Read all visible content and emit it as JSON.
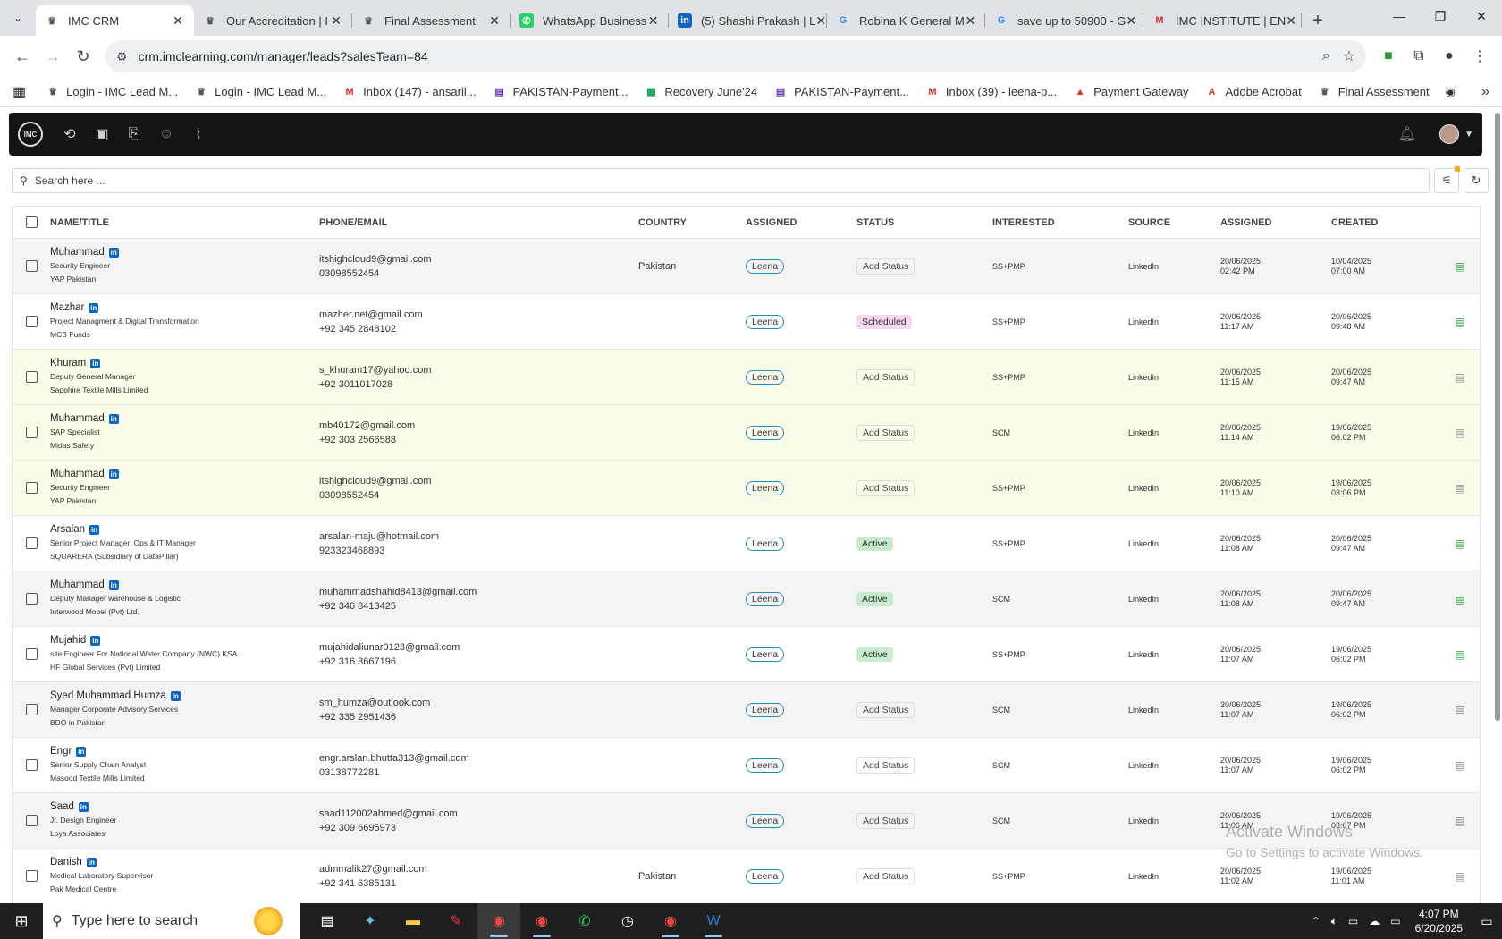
{
  "browser": {
    "tabs": [
      {
        "title": "IMC CRM",
        "icon": "imc-icon",
        "active": true
      },
      {
        "title": "Our Accreditation | I",
        "icon": "imc-icon"
      },
      {
        "title": "Final Assessment",
        "icon": "imc-icon"
      },
      {
        "title": "WhatsApp Business",
        "icon": "whatsapp-icon"
      },
      {
        "title": "(5) Shashi Prakash | L",
        "icon": "linkedin-icon"
      },
      {
        "title": "Robina K General M",
        "icon": "google-icon"
      },
      {
        "title": "save up to 50900 - G",
        "icon": "google-icon"
      },
      {
        "title": "IMC INSTITUTE | EN",
        "icon": "gmail-icon"
      }
    ],
    "url": "crm.imclearning.com/manager/leads?salesTeam=84",
    "bookmarks": [
      {
        "label": "Login - IMC Lead M...",
        "icon": "imc-icon",
        "color": "#555"
      },
      {
        "label": "Login - IMC Lead M...",
        "icon": "imc-icon",
        "color": "#555"
      },
      {
        "label": "Inbox (147) - ansaril...",
        "icon": "gmail-icon",
        "color": "#d93025"
      },
      {
        "label": "PAKISTAN-Payment...",
        "icon": "forms-icon",
        "color": "#673ab7"
      },
      {
        "label": "Recovery June'24",
        "icon": "sheets-icon",
        "color": "#0f9d58"
      },
      {
        "label": "PAKISTAN-Payment...",
        "icon": "forms-icon",
        "color": "#673ab7"
      },
      {
        "label": "Inbox (39) - leena-p...",
        "icon": "gmail-icon",
        "color": "#d93025"
      },
      {
        "label": "Payment Gateway",
        "icon": "payment-icon",
        "color": "#d93025"
      },
      {
        "label": "Adobe Acrobat",
        "icon": "acrobat-icon",
        "color": "#d93025"
      },
      {
        "label": "Final Assessment",
        "icon": "imc-icon",
        "color": "#555"
      }
    ]
  },
  "crm": {
    "logo_text": "IMC",
    "search_placeholder": "Search here ...",
    "headers": {
      "name": "NAME/TITLE",
      "phone": "PHONE/EMAIL",
      "country": "COUNTRY",
      "assigned": "ASSIGNED",
      "status": "STATUS",
      "interested": "INTERESTED",
      "source": "SOURCE",
      "assigned_date": "ASSIGNED",
      "created": "CREATED"
    },
    "rows": [
      {
        "name": "Muhammad",
        "title": "Security Engineer",
        "company": "YAP Pakistan",
        "email": "itshighcloud9@gmail.com",
        "phone": "03098552454",
        "country": "Pakistan",
        "assigned": "Leena",
        "status": "Add Status",
        "status_type": "add",
        "interested": "SS+PMP",
        "source": "LinkedIn",
        "assigned_date": "20/06/2025",
        "assigned_time": "02:42 PM",
        "created_date": "10/04/2025",
        "created_time": "07:00 AM",
        "bg": "grey",
        "doc": "green"
      },
      {
        "name": "Mazhar",
        "title": "Project Managment & Digital Transformation",
        "company": "MCB Funds",
        "email": "mazher.net@gmail.com",
        "phone": "+92 345 2848102",
        "country": "",
        "assigned": "Leena",
        "status": "Scheduled",
        "status_type": "sched",
        "interested": "SS+PMP",
        "source": "LinkedIn",
        "assigned_date": "20/06/2025",
        "assigned_time": "11:17 AM",
        "created_date": "20/06/2025",
        "created_time": "09:48 AM",
        "bg": "white",
        "doc": "green"
      },
      {
        "name": "Khuram",
        "title": "Deputy General Manager",
        "company": "Sapphire Textile Mills Limited",
        "email": "s_khuram17@yahoo.com",
        "phone": "+92 3011017028",
        "country": "",
        "assigned": "Leena",
        "status": "Add Status",
        "status_type": "add",
        "interested": "SS+PMP",
        "source": "LinkedIn",
        "assigned_date": "20/06/2025",
        "assigned_time": "11:15 AM",
        "created_date": "20/06/2025",
        "created_time": "09:47 AM",
        "bg": "yellow",
        "doc": "grey"
      },
      {
        "name": "Muhammad",
        "title": "SAP Specialist",
        "company": "Midas Safety",
        "email": "mb40172@gmail.com",
        "phone": "+92 303 2566588",
        "country": "",
        "assigned": "Leena",
        "status": "Add Status",
        "status_type": "add",
        "interested": "SCM",
        "source": "LinkedIn",
        "assigned_date": "20/06/2025",
        "assigned_time": "11:14 AM",
        "created_date": "19/06/2025",
        "created_time": "06:02 PM",
        "bg": "yellow",
        "doc": "grey"
      },
      {
        "name": "Muhammad",
        "title": "Security Engineer",
        "company": "YAP Pakistan",
        "email": "itshighcloud9@gmail.com",
        "phone": "03098552454",
        "country": "",
        "assigned": "Leena",
        "status": "Add Status",
        "status_type": "add",
        "interested": "SS+PMP",
        "source": "LinkedIn",
        "assigned_date": "20/06/2025",
        "assigned_time": "11:10 AM",
        "created_date": "19/06/2025",
        "created_time": "03:06 PM",
        "bg": "yellow",
        "doc": "grey"
      },
      {
        "name": "Arsalan",
        "title": "Senior Project Manager, Ops & IT Manager",
        "company": "SQUARERA (Subsidiary of DataPillar)",
        "email": "arsalan-maju@hotmail.com",
        "phone": "923323468893",
        "country": "",
        "assigned": "Leena",
        "status": "Active",
        "status_type": "active",
        "interested": "SS+PMP",
        "source": "LinkedIn",
        "assigned_date": "20/06/2025",
        "assigned_time": "11:08 AM",
        "created_date": "20/06/2025",
        "created_time": "09:47 AM",
        "bg": "white",
        "doc": "green"
      },
      {
        "name": "Muhammad",
        "title": "Deputy Manager warehouse & Logistic",
        "company": "Interwood Mobel (Pvt) Ltd.",
        "email": "muhammadshahid8413@gmail.com",
        "phone": "+92 346 8413425",
        "country": "",
        "assigned": "Leena",
        "status": "Active",
        "status_type": "active",
        "interested": "SCM",
        "source": "LinkedIn",
        "assigned_date": "20/06/2025",
        "assigned_time": "11:08 AM",
        "created_date": "20/06/2025",
        "created_time": "09:47 AM",
        "bg": "grey",
        "doc": "green"
      },
      {
        "name": "Mujahid",
        "title": "site Engineer For National Water Company (NWC) KSA",
        "company": "HF Global Services (Pvt) Limited",
        "email": "mujahidaliunar0123@gmail.com",
        "phone": "+92 316 3667196",
        "country": "",
        "assigned": "Leena",
        "status": "Active",
        "status_type": "active",
        "interested": "SS+PMP",
        "source": "LinkedIn",
        "assigned_date": "20/06/2025",
        "assigned_time": "11:07 AM",
        "created_date": "19/06/2025",
        "created_time": "06:02 PM",
        "bg": "white",
        "doc": "green"
      },
      {
        "name": "Syed Muhammad Humza",
        "title": "Manager Corporate Advisory Services",
        "company": "BDO in Pakistan",
        "email": "sm_humza@outlook.com",
        "phone": "+92 335 2951436",
        "country": "",
        "assigned": "Leena",
        "status": "Add Status",
        "status_type": "add",
        "interested": "SCM",
        "source": "LinkedIn",
        "assigned_date": "20/06/2025",
        "assigned_time": "11:07 AM",
        "created_date": "19/06/2025",
        "created_time": "06:02 PM",
        "bg": "grey",
        "doc": "grey"
      },
      {
        "name": "Engr",
        "title": "Senior Supply Chain Analyst",
        "company": "Masood Textile Mills Limited",
        "email": "engr.arslan.bhutta313@gmail.com",
        "phone": "03138772281",
        "country": "",
        "assigned": "Leena",
        "status": "Add Status",
        "status_type": "add",
        "interested": "SCM",
        "source": "LinkedIn",
        "assigned_date": "20/06/2025",
        "assigned_time": "11:07 AM",
        "created_date": "19/06/2025",
        "created_time": "06:02 PM",
        "bg": "white",
        "doc": "grey"
      },
      {
        "name": "Saad",
        "title": "Jr. Design Engineer",
        "company": "Loya Associates",
        "email": "saad112002ahmed@gmail.com",
        "phone": "+92 309 6695973",
        "country": "",
        "assigned": "Leena",
        "status": "Add Status",
        "status_type": "add",
        "interested": "SCM",
        "source": "LinkedIn",
        "assigned_date": "20/06/2025",
        "assigned_time": "11:06 AM",
        "created_date": "19/06/2025",
        "created_time": "03:07 PM",
        "bg": "grey",
        "doc": "grey"
      },
      {
        "name": "Danish",
        "title": "Medical Laboratory Supervisor",
        "company": "Pak Medical Centre",
        "email": "admmalik27@gmail.com",
        "phone": "+92 341 6385131",
        "country": "Pakistan",
        "assigned": "Leena",
        "status": "Add Status",
        "status_type": "add",
        "interested": "SS+PMP",
        "source": "LinkedIn",
        "assigned_date": "20/06/2025",
        "assigned_time": "11:02 AM",
        "created_date": "19/06/2025",
        "created_time": "11:01 AM",
        "bg": "white",
        "doc": "grey"
      }
    ]
  },
  "watermark": {
    "line1": "Activate Windows",
    "line2": "Go to Settings to activate Windows."
  },
  "taskbar": {
    "search_placeholder": "Type here to search",
    "time": "4:07 PM",
    "date": "6/20/2025"
  }
}
